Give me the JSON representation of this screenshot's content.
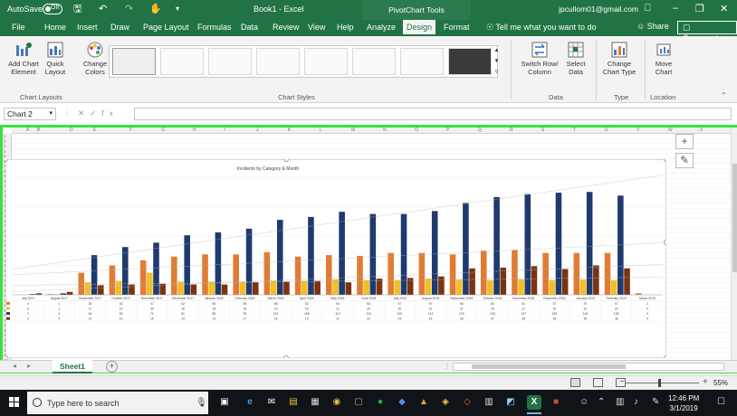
{
  "titlebar": {
    "autosave_label": "AutoSave",
    "autosave_state": "Off",
    "document_title": "Book1 - Excel",
    "context_title": "PivotChart Tools",
    "user_email": "jpcullom01@gmail.com"
  },
  "tabs": [
    {
      "label": "File"
    },
    {
      "label": "Home"
    },
    {
      "label": "Insert"
    },
    {
      "label": "Draw"
    },
    {
      "label": "Page Layout"
    },
    {
      "label": "Formulas"
    },
    {
      "label": "Data"
    },
    {
      "label": "Review"
    },
    {
      "label": "View"
    },
    {
      "label": "Help"
    },
    {
      "label": "Analyze"
    },
    {
      "label": "Design"
    },
    {
      "label": "Format"
    }
  ],
  "active_tab": "Design",
  "tell_me": "Tell me what you want to do",
  "share_label": "Share",
  "comments_label": "Comments",
  "ribbon": {
    "add_chart_element": "Add Chart Element",
    "quick_layout": "Quick Layout",
    "change_colors": "Change Colors",
    "chart_layouts_group": "Chart Layouts",
    "chart_styles_group": "Chart Styles",
    "switch_row_column": "Switch Row/ Column",
    "select_data": "Select Data",
    "data_group": "Data",
    "change_chart_type": "Change Chart Type",
    "type_group": "Type",
    "move_chart": "Move Chart",
    "location_group": "Location"
  },
  "name_box": "Chart 2",
  "sheet_tab": "Sheet1",
  "zoom_level": "55%",
  "taskbar": {
    "search_placeholder": "Type here to search",
    "time": "12:46 PM",
    "date": "3/1/2019"
  },
  "colors": {
    "excel_green": "#217346",
    "selection_green": "#39e23a",
    "series_navy": "#1f3a6e",
    "series_orange": "#e07b35",
    "series_gold": "#f2bf27",
    "series_brown": "#7a3313"
  },
  "chart_data": {
    "type": "bar",
    "title": "Incidents by Category & Month",
    "categories": [
      "July 2017",
      "August 2017",
      "September 2017",
      "October 2017",
      "November 2017",
      "December 2017",
      "January 2018",
      "February 2018",
      "March 2018",
      "April 2018",
      "May 2018",
      "June 2018",
      "July 2018",
      "August 2018",
      "September 2018",
      "October 2018",
      "November 2018",
      "December 2018",
      "January 2019",
      "February 2019",
      "March 2019"
    ],
    "series": [
      {
        "values": [
          0,
          1,
          30,
          40,
          47,
          52,
          55,
          55,
          58,
          52,
          54,
          53,
          57,
          57,
          55,
          60,
          61,
          57,
          57,
          57,
          2
        ]
      },
      {
        "values": [
          0,
          1,
          17,
          19,
          30,
          18,
          18,
          18,
          19,
          19,
          21,
          20,
          20,
          22,
          21,
          20,
          21,
          20,
          21,
          20,
          0
        ]
      },
      {
        "values": [
          1,
          2,
          54,
          65,
          71,
          81,
          85,
          90,
          102,
          106,
          113,
          110,
          110,
          114,
          125,
          133,
          137,
          139,
          140,
          135,
          0
        ]
      },
      {
        "values": [
          2,
          4,
          13,
          14,
          15,
          14,
          14,
          17,
          18,
          19,
          17,
          22,
          23,
          25,
          36,
          37,
          39,
          35,
          40,
          36,
          0
        ]
      }
    ],
    "ylim": [
      0,
      160
    ],
    "trendlines": true,
    "legend": "none"
  }
}
